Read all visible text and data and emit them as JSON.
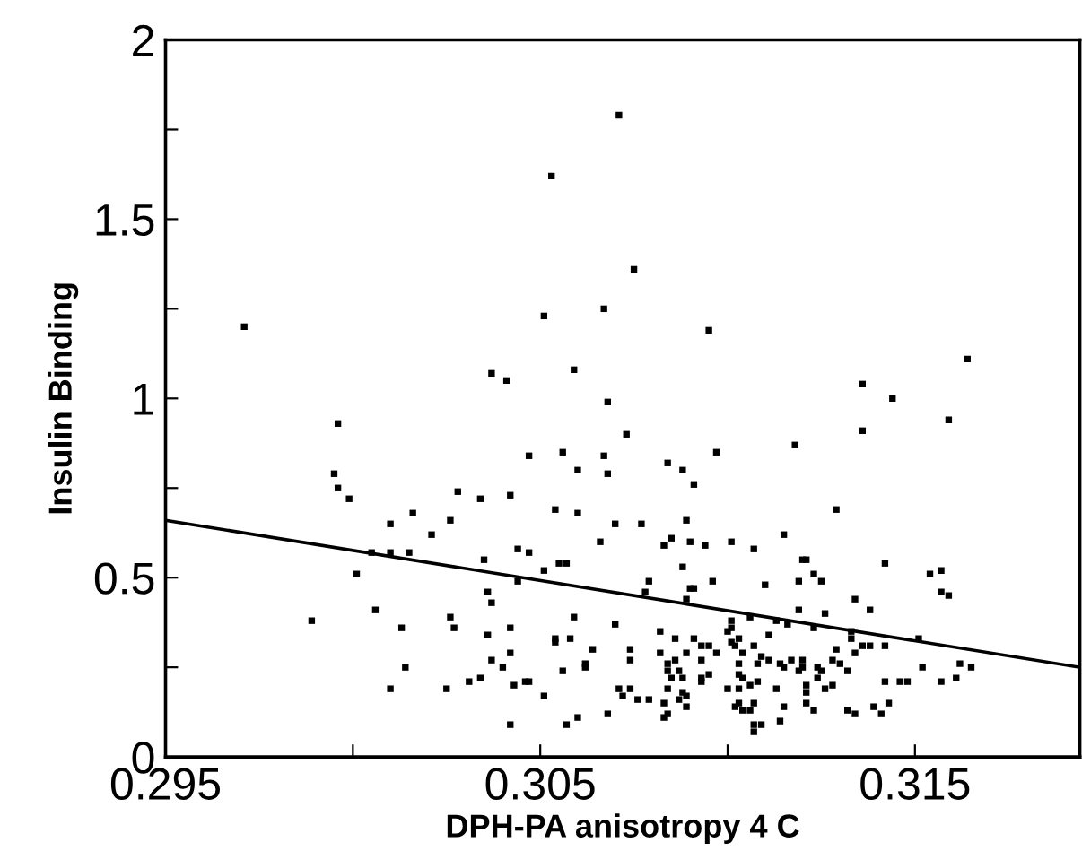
{
  "chart_data": {
    "type": "scatter",
    "xlabel": "DPH-PA anisotropy 4 C",
    "ylabel": "Insulin Binding",
    "xlim": [
      0.295,
      0.3194
    ],
    "ylim": [
      0,
      2
    ],
    "xticks": [
      0.295,
      {
        "value": 0.3,
        "label": null
      },
      0.305,
      {
        "value": 0.31,
        "label": null
      },
      0.315
    ],
    "yticks": [
      0,
      {
        "value": 0.25,
        "label": null
      },
      0.5,
      {
        "value": 0.75,
        "label": null
      },
      1,
      {
        "value": 1.25,
        "label": null
      },
      1.5,
      {
        "value": 1.75,
        "label": null
      },
      2
    ],
    "grid": false,
    "legend": false,
    "marker": "square",
    "series": [
      {
        "color": "#000000",
        "x": [
          0.2971,
          0.3071,
          0.3053,
          0.3075,
          0.3051,
          0.3067,
          0.3095,
          0.3164,
          0.3037,
          0.3041,
          0.3059,
          0.3136,
          0.3144,
          0.3068,
          0.3159,
          0.3136,
          0.2996,
          0.3073,
          0.3047,
          0.3056,
          0.3067,
          0.3097,
          0.3118,
          0.3084,
          0.3088,
          0.3091,
          0.306,
          0.3068,
          0.2995,
          0.2996,
          0.2999,
          0.3028,
          0.3034,
          0.3042,
          0.3054,
          0.306,
          0.3129,
          0.3016,
          0.301,
          0.3026,
          0.3077,
          0.307,
          0.3089,
          0.3021,
          0.3115,
          0.3066,
          0.3085,
          0.3083,
          0.309,
          0.3094,
          0.3101,
          0.3107,
          0.3044,
          0.3047,
          0.3005,
          0.301,
          0.3015,
          0.3035,
          0.3055,
          0.3057,
          0.312,
          0.3121,
          0.3142,
          0.3154,
          0.3157,
          0.3001,
          0.3051,
          0.3088,
          0.3123,
          0.3119,
          0.3125,
          0.3044,
          0.3079,
          0.3096,
          0.311,
          0.309,
          0.3091,
          0.3078,
          0.3089,
          0.3036,
          0.3037,
          0.3134,
          0.3157,
          0.3159,
          0.3006,
          0.3138,
          0.3119,
          0.3126,
          0.2989,
          0.3026,
          0.3027,
          0.3013,
          0.3042,
          0.3036,
          0.3054,
          0.3058,
          0.3059,
          0.307,
          0.3101,
          0.3106,
          0.3113,
          0.3116,
          0.3123,
          0.3133,
          0.3133,
          0.3136,
          0.3138,
          0.3142,
          0.3151,
          0.3082,
          0.3086,
          0.3091,
          0.3093,
          0.3095,
          0.3101,
          0.3102,
          0.3107,
          0.3111,
          0.3129,
          0.3064,
          0.3074,
          0.3042,
          0.3054,
          0.3082,
          0.3086,
          0.3089,
          0.3097,
          0.3104,
          0.3109,
          0.3117,
          0.312,
          0.3128,
          0.3134,
          0.3037,
          0.304,
          0.3062,
          0.3062,
          0.3074,
          0.3084,
          0.3093,
          0.3103,
          0.3108,
          0.3111,
          0.3114,
          0.312,
          0.3124,
          0.313,
          0.3152,
          0.3162,
          0.3165,
          0.3014,
          0.3056,
          0.3084,
          0.3087,
          0.3095,
          0.3103,
          0.3115,
          0.3119,
          0.3125,
          0.3132,
          0.3031,
          0.3034,
          0.3046,
          0.3047,
          0.3043,
          0.3025,
          0.3085,
          0.3088,
          0.3093,
          0.3104,
          0.3108,
          0.3121,
          0.3124,
          0.3142,
          0.3146,
          0.3148,
          0.3157,
          0.3161,
          0.301,
          0.3071,
          0.3074,
          0.3072,
          0.3093,
          0.3084,
          0.3088,
          0.31,
          0.3103,
          0.3106,
          0.3113,
          0.3121,
          0.3126,
          0.3128,
          0.3051,
          0.3076,
          0.3079,
          0.3083,
          0.3087,
          0.3103,
          0.3107,
          0.3121,
          0.3143,
          0.3068,
          0.3102,
          0.3104,
          0.3106,
          0.3115,
          0.3123,
          0.3132,
          0.3134,
          0.3139,
          0.3141,
          0.3083,
          0.3084,
          0.306,
          0.3057,
          0.3042,
          0.3107,
          0.3109,
          0.3114,
          0.3107,
          0.3089,
          0.3089,
          0.3101,
          0.3103,
          0.31
        ],
        "values": [
          1.2,
          1.79,
          1.62,
          1.36,
          1.23,
          1.25,
          1.19,
          1.11,
          1.07,
          1.05,
          1.08,
          1.04,
          1.0,
          0.99,
          0.94,
          0.91,
          0.93,
          0.9,
          0.84,
          0.85,
          0.84,
          0.85,
          0.87,
          0.82,
          0.8,
          0.76,
          0.8,
          0.79,
          0.79,
          0.75,
          0.72,
          0.74,
          0.72,
          0.73,
          0.69,
          0.68,
          0.69,
          0.68,
          0.65,
          0.66,
          0.65,
          0.65,
          0.66,
          0.62,
          0.62,
          0.6,
          0.61,
          0.59,
          0.6,
          0.59,
          0.6,
          0.58,
          0.58,
          0.57,
          0.57,
          0.57,
          0.57,
          0.55,
          0.54,
          0.54,
          0.55,
          0.55,
          0.54,
          0.51,
          0.52,
          0.51,
          0.52,
          0.53,
          0.51,
          0.49,
          0.49,
          0.49,
          0.49,
          0.49,
          0.48,
          0.47,
          0.47,
          0.46,
          0.44,
          0.46,
          0.43,
          0.44,
          0.46,
          0.45,
          0.41,
          0.41,
          0.41,
          0.4,
          0.38,
          0.39,
          0.36,
          0.36,
          0.36,
          0.34,
          0.33,
          0.33,
          0.39,
          0.37,
          0.38,
          0.39,
          0.38,
          0.37,
          0.36,
          0.35,
          0.33,
          0.31,
          0.31,
          0.31,
          0.33,
          0.35,
          0.33,
          0.33,
          0.31,
          0.31,
          0.32,
          0.31,
          0.31,
          0.34,
          0.3,
          0.3,
          0.3,
          0.29,
          0.32,
          0.29,
          0.27,
          0.29,
          0.29,
          0.29,
          0.28,
          0.27,
          0.27,
          0.27,
          0.29,
          0.27,
          0.25,
          0.26,
          0.25,
          0.27,
          0.26,
          0.27,
          0.26,
          0.26,
          0.27,
          0.26,
          0.25,
          0.25,
          0.26,
          0.25,
          0.26,
          0.25,
          0.25,
          0.24,
          0.24,
          0.24,
          0.23,
          0.23,
          0.25,
          0.24,
          0.24,
          0.24,
          0.21,
          0.22,
          0.21,
          0.21,
          0.2,
          0.19,
          0.22,
          0.22,
          0.21,
          0.22,
          0.21,
          0.2,
          0.22,
          0.21,
          0.21,
          0.21,
          0.21,
          0.22,
          0.19,
          0.19,
          0.19,
          0.17,
          0.22,
          0.19,
          0.18,
          0.19,
          0.19,
          0.2,
          0.19,
          0.18,
          0.19,
          0.2,
          0.17,
          0.16,
          0.16,
          0.15,
          0.16,
          0.15,
          0.15,
          0.15,
          0.15,
          0.12,
          0.14,
          0.13,
          0.13,
          0.14,
          0.13,
          0.13,
          0.12,
          0.14,
          0.12,
          0.11,
          0.12,
          0.11,
          0.09,
          0.09,
          0.09,
          0.09,
          0.1,
          0.07,
          0.14,
          0.17,
          0.36,
          0.33,
          0.35
        ]
      },
      {
        "type": "line",
        "color": "#000000",
        "marker": "none",
        "x": [
          0.295,
          0.3194
        ],
        "values": [
          0.66,
          0.25
        ]
      }
    ]
  }
}
